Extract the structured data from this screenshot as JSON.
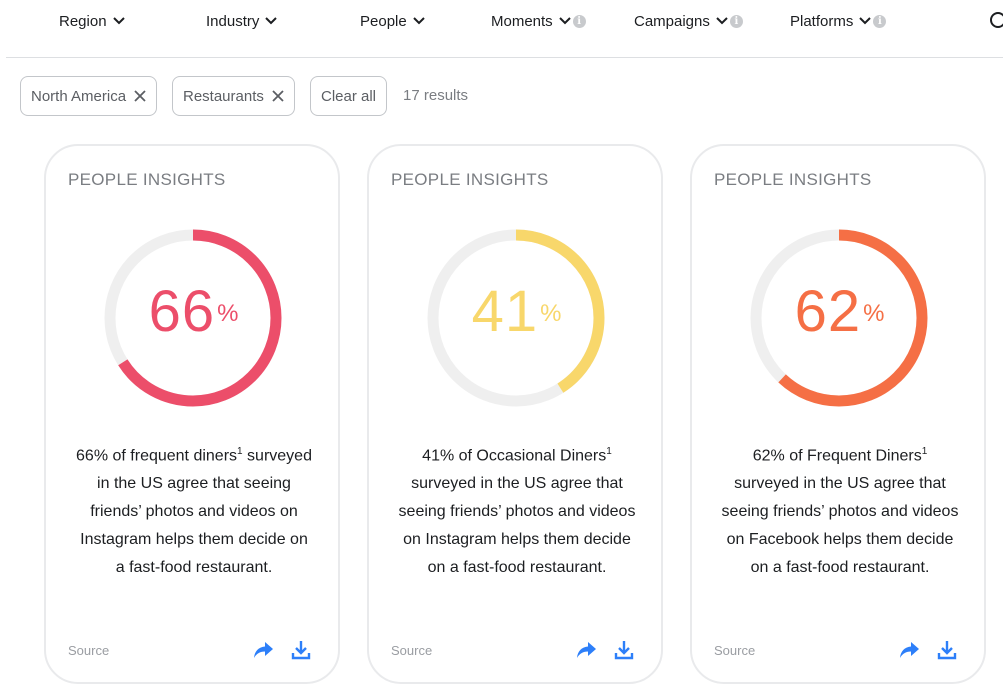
{
  "nav": {
    "items": [
      {
        "label": "Region",
        "info": false
      },
      {
        "label": "Industry",
        "info": false
      },
      {
        "label": "People",
        "info": false
      },
      {
        "label": "Moments",
        "info": true
      },
      {
        "label": "Campaigns",
        "info": true
      },
      {
        "label": "Platforms",
        "info": true
      }
    ],
    "info_glyph": "i"
  },
  "filters": {
    "chips": [
      "North America",
      "Restaurants"
    ],
    "clear_label": "Clear all",
    "results_text": "17 results"
  },
  "cards": [
    {
      "kicker": "PEOPLE INSIGHTS",
      "percent": 66,
      "percent_label": "66",
      "percent_sign": "%",
      "color": "#ec4e6a",
      "desc_lead": "66% of frequent diners",
      "footnote": "1",
      "desc_rest": "surveyed in the US agree that seeing friends’ photos and videos on Instagram helps them decide on a fast-food restaurant.",
      "source_label": "Source"
    },
    {
      "kicker": "PEOPLE INSIGHTS",
      "percent": 41,
      "percent_label": "41",
      "percent_sign": "%",
      "color": "#f8d76b",
      "desc_lead": "41% of Occasional Diners",
      "footnote": "1",
      "desc_rest": "surveyed in the US agree that seeing friends’ photos and videos on Instagram helps them decide on a fast-food restaurant.",
      "source_label": "Source"
    },
    {
      "kicker": "PEOPLE INSIGHTS",
      "percent": 62,
      "percent_label": "62",
      "percent_sign": "%",
      "color": "#f56f45",
      "desc_lead": "62% of Frequent Diners",
      "footnote": "1",
      "desc_rest": "surveyed in the US agree that seeing friends’ photos and videos on Facebook helps them decide on a fast-food restaurant.",
      "source_label": "Source"
    }
  ],
  "colors": {
    "ring_track": "#efefef",
    "action_blue": "#2d7ff9"
  },
  "icons": {
    "chevron": "chevron-down-icon",
    "info": "info-icon",
    "remove": "close-icon",
    "share": "share-arrow-icon",
    "download": "download-icon",
    "search": "search-icon"
  }
}
